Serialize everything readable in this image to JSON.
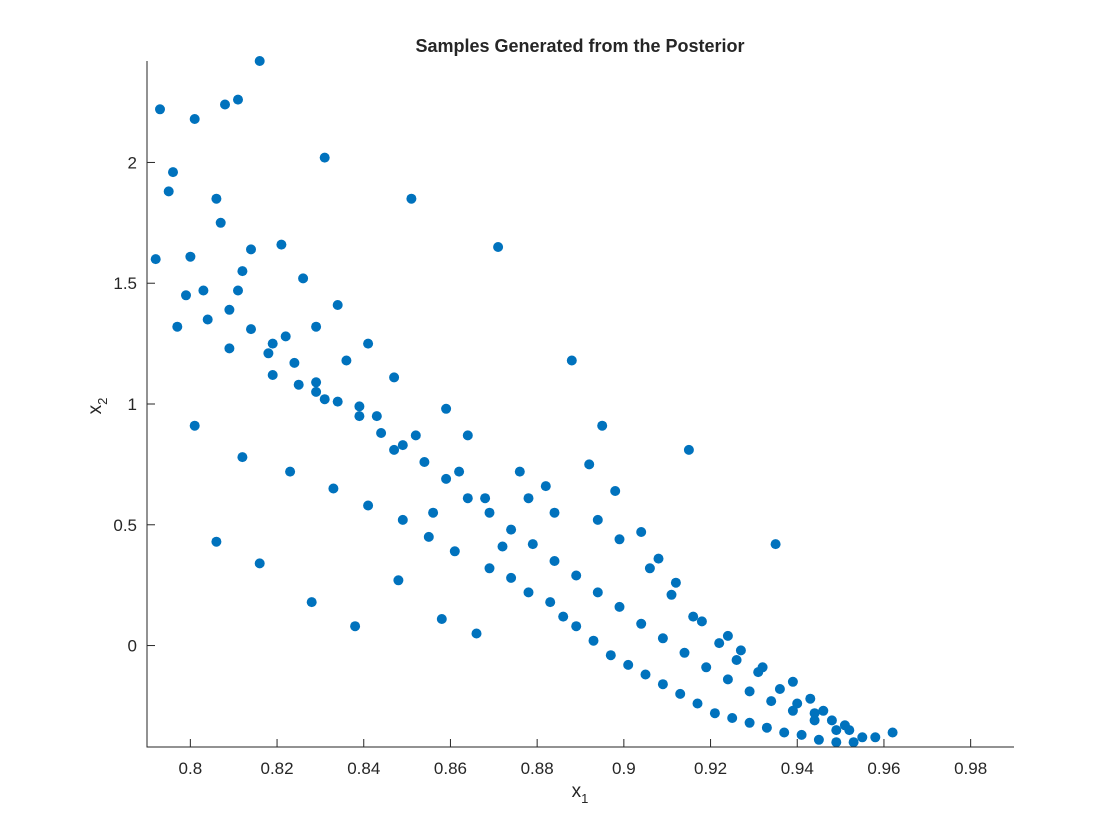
{
  "chart_data": {
    "type": "scatter",
    "title": "Samples Generated from the Posterior",
    "xlabel_main": "x",
    "xlabel_sub": "1",
    "ylabel_main": "x",
    "ylabel_sub": "2",
    "xlim": [
      0.79,
      0.99
    ],
    "ylim": [
      -0.42,
      2.42
    ],
    "xticks": [
      0.8,
      0.82,
      0.84,
      0.86,
      0.88,
      0.9,
      0.92,
      0.94,
      0.96,
      0.98
    ],
    "xtick_labels": [
      "0.8",
      "0.82",
      "0.84",
      "0.86",
      "0.88",
      "0.9",
      "0.92",
      "0.94",
      "0.96",
      "0.98"
    ],
    "yticks": [
      0,
      0.5,
      1,
      1.5,
      2
    ],
    "ytick_labels": [
      "0",
      "0.5",
      "1",
      "1.5",
      "2"
    ],
    "grid": false,
    "legend": "none",
    "marker_color": "#0072BD",
    "series": [
      {
        "x": [
          0.801,
          0.808,
          0.816,
          0.806,
          0.796,
          0.793,
          0.812,
          0.821,
          0.797,
          0.826,
          0.834,
          0.809,
          0.819,
          0.829,
          0.799,
          0.804,
          0.811,
          0.818,
          0.825,
          0.836,
          0.843,
          0.852,
          0.862,
          0.868,
          0.856,
          0.847,
          0.839,
          0.831,
          0.822,
          0.814,
          0.807,
          0.795,
          0.792,
          0.801,
          0.812,
          0.823,
          0.833,
          0.841,
          0.849,
          0.855,
          0.861,
          0.869,
          0.874,
          0.878,
          0.883,
          0.886,
          0.889,
          0.893,
          0.897,
          0.901,
          0.905,
          0.909,
          0.913,
          0.917,
          0.921,
          0.925,
          0.929,
          0.933,
          0.937,
          0.941,
          0.945,
          0.949,
          0.953,
          0.958,
          0.962,
          0.935,
          0.915,
          0.895,
          0.871,
          0.851,
          0.831,
          0.811,
          0.806,
          0.816,
          0.828,
          0.838,
          0.848,
          0.858,
          0.866,
          0.872,
          0.878,
          0.884,
          0.888,
          0.892,
          0.898,
          0.904,
          0.908,
          0.912,
          0.918,
          0.922,
          0.926,
          0.931,
          0.936,
          0.94,
          0.944,
          0.948,
          0.952,
          0.829,
          0.841,
          0.847,
          0.859,
          0.864,
          0.876,
          0.882,
          0.894,
          0.899,
          0.906,
          0.911,
          0.916,
          0.924,
          0.927,
          0.932,
          0.939,
          0.943,
          0.946,
          0.951,
          0.955,
          0.8,
          0.803,
          0.809,
          0.814,
          0.819,
          0.824,
          0.829,
          0.834,
          0.839,
          0.844,
          0.849,
          0.854,
          0.859,
          0.864,
          0.869,
          0.874,
          0.879,
          0.884,
          0.889,
          0.894,
          0.899,
          0.904,
          0.909,
          0.914,
          0.919,
          0.924,
          0.929,
          0.934,
          0.939,
          0.944,
          0.949
        ],
        "y": [
          2.18,
          2.24,
          2.42,
          1.85,
          1.96,
          2.22,
          1.55,
          1.66,
          1.32,
          1.52,
          1.41,
          1.23,
          1.12,
          1.05,
          1.45,
          1.35,
          1.47,
          1.21,
          1.08,
          1.18,
          0.95,
          0.87,
          0.72,
          0.61,
          0.55,
          0.81,
          0.99,
          1.02,
          1.28,
          1.64,
          1.75,
          1.88,
          1.6,
          0.91,
          0.78,
          0.72,
          0.65,
          0.58,
          0.52,
          0.45,
          0.39,
          0.32,
          0.28,
          0.22,
          0.18,
          0.12,
          0.08,
          0.02,
          -0.04,
          -0.08,
          -0.12,
          -0.16,
          -0.2,
          -0.24,
          -0.28,
          -0.3,
          -0.32,
          -0.34,
          -0.36,
          -0.37,
          -0.39,
          -0.4,
          -0.4,
          -0.38,
          -0.36,
          0.42,
          0.81,
          0.91,
          1.65,
          1.85,
          2.02,
          2.26,
          0.43,
          0.34,
          0.18,
          0.08,
          0.27,
          0.11,
          0.05,
          0.41,
          0.61,
          0.55,
          1.18,
          0.75,
          0.64,
          0.47,
          0.36,
          0.26,
          0.1,
          0.01,
          -0.06,
          -0.11,
          -0.18,
          -0.24,
          -0.28,
          -0.31,
          -0.35,
          1.32,
          1.25,
          1.11,
          0.98,
          0.87,
          0.72,
          0.66,
          0.52,
          0.44,
          0.32,
          0.21,
          0.12,
          0.04,
          -0.02,
          -0.09,
          -0.15,
          -0.22,
          -0.27,
          -0.33,
          -0.38,
          1.61,
          1.47,
          1.39,
          1.31,
          1.25,
          1.17,
          1.09,
          1.01,
          0.95,
          0.88,
          0.83,
          0.76,
          0.69,
          0.61,
          0.55,
          0.48,
          0.42,
          0.35,
          0.29,
          0.22,
          0.16,
          0.09,
          0.03,
          -0.03,
          -0.09,
          -0.14,
          -0.19,
          -0.23,
          -0.27,
          -0.31,
          -0.35
        ]
      }
    ]
  }
}
